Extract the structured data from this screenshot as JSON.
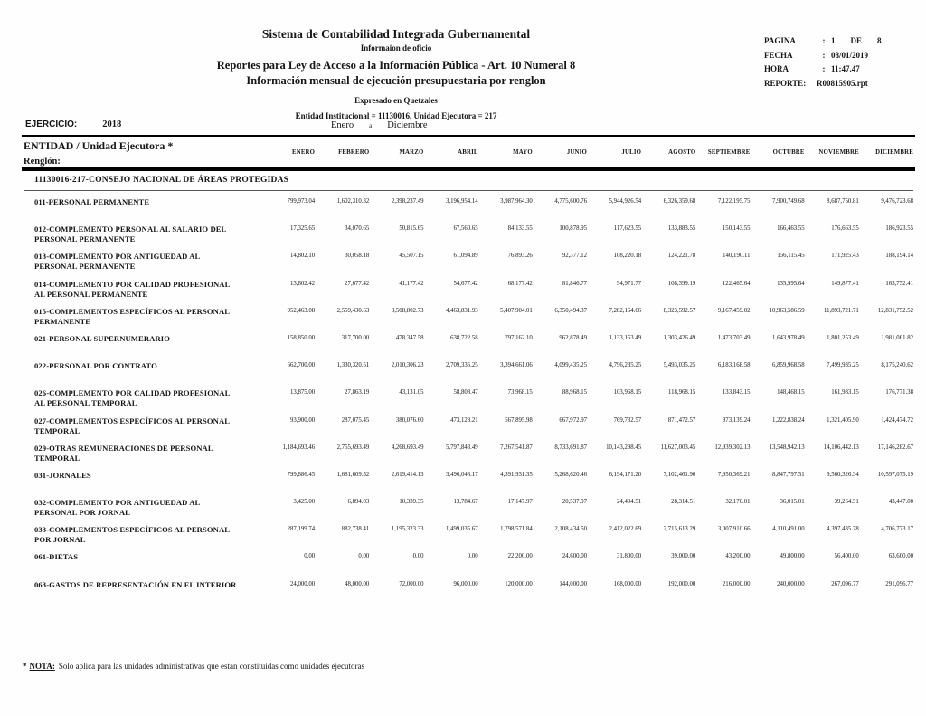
{
  "header": {
    "title1": "Sistema de Contabilidad Integrada Gubernamental",
    "title2": "Informaion de oficio",
    "title3": "Reportes para Ley de Acceso a la Información Pública - Art. 10 Numeral 8",
    "title4": "Información mensual de ejecución presupuestaria por renglon",
    "subtitle1": "Expresado en Quetzales",
    "subtitle2": "Entidad Institucional = 11130016, Unidad Ejecutora = 217"
  },
  "meta": {
    "pagina_label": "PAGINA",
    "pagina_value": "1",
    "pagina_de_label": "DE",
    "pagina_total": "8",
    "fecha_label": "FECHA",
    "fecha_value": "08/01/2019",
    "hora_label": "HORA",
    "hora_value": "11:47.47",
    "reporte_label": "REPORTE:",
    "reporte_value": "R00815905.rpt",
    "colon": ":"
  },
  "ejercicio": {
    "label": "EJERCICIO:",
    "value": "2018"
  },
  "period": {
    "from": "Enero",
    "sep": "a",
    "to": "Diciembre"
  },
  "table": {
    "entity_header": "ENTIDAD  / Unidad Ejecutora *",
    "renglon_label": "Renglón:",
    "months": [
      "ENERO",
      "FEBRERO",
      "MARZO",
      "ABRIL",
      "MAYO",
      "JUNIO",
      "JULIO",
      "AGOSTO",
      "SEPTIEMBRE",
      "OCTUBRE",
      "NOVIEMBRE",
      "DICIEMBRE"
    ],
    "group_title": "11130016-217-CONSEJO NACIONAL DE ÁREAS PROTEGIDAS",
    "rows": [
      {
        "label": "011-PERSONAL PERMANENTE",
        "values": [
          "799,973.04",
          "1,602,310.32",
          "2,398,237.49",
          "3,196,954.14",
          "3,987,964.30",
          "4,775,600.76",
          "5,944,926.54",
          "6,326,359.68",
          "7,122,195.75",
          "7,900,749.68",
          "8,687,750.81",
          "9,476,723.68"
        ]
      },
      {
        "label": "012-COMPLEMENTO PERSONAL AL SALARIO DEL PERSONAL PERMANENTE",
        "values": [
          "17,325.65",
          "34,070.65",
          "50,815.65",
          "67,560.65",
          "84,133.55",
          "100,878.95",
          "117,623.55",
          "133,883.55",
          "150,143.55",
          "166,463.55",
          "176,663.55",
          "186,923.55"
        ]
      },
      {
        "label": "013-COMPLEMENTO POR ANTIGÜEDAD AL PERSONAL PERMANENTE",
        "values": [
          "14,802.10",
          "30,058.18",
          "45,507.15",
          "61,094.89",
          "76,893.26",
          "92,377.12",
          "108,220.18",
          "124,221.78",
          "140,190.11",
          "156,115.45",
          "171,925.43",
          "188,194.14"
        ]
      },
      {
        "label": "014-COMPLEMENTO POR CALIDAD PROFESIONAL AL PERSONAL PERMANENTE",
        "values": [
          "13,802.42",
          "27,677.42",
          "41,177.42",
          "54,677.42",
          "68,177.42",
          "81,846.77",
          "94,971.77",
          "108,399.19",
          "122,465.64",
          "135,995.64",
          "149,877.41",
          "163,752.41"
        ]
      },
      {
        "label": "015-COMPLEMENTOS ESPECÍFICOS AL PERSONAL PERMANENTE",
        "values": [
          "952,463.08",
          "2,559,430.63",
          "3,508,802.73",
          "4,463,831.93",
          "5,407,904.01",
          "6,350,494.37",
          "7,282,164.66",
          "8,323,592.57",
          "9,167,459.02",
          "10,963,586.59",
          "11,893,721.71",
          "12,831,752.52"
        ]
      },
      {
        "label": "021-PERSONAL SUPERNUMERARIO",
        "values": [
          "158,850.00",
          "317,700.00",
          "478,347.58",
          "638,722.58",
          "797,162.10",
          "962,878.49",
          "1,133,153.49",
          "1,303,426.49",
          "1,473,703.49",
          "1,643,978.49",
          "1,801,253.49",
          "1,981,061.82"
        ]
      },
      {
        "label": "022-PERSONAL POR CONTRATO",
        "values": [
          "662,700.00",
          "1,330,320.51",
          "2,010,306.23",
          "2,709,335.25",
          "3,394,661.06",
          "4,099,435.25",
          "4,796,235.25",
          "5,493,035.25",
          "6,183,168.58",
          "6,859,968.58",
          "7,499,935.25",
          "8,175,240.62"
        ]
      },
      {
        "label": "026-COMPLEMENTO POR CALIDAD PROFESIONAL AL PERSONAL TEMPORAL",
        "values": [
          "13,875.00",
          "27,863.19",
          "43,131.05",
          "58,808.47",
          "73,968.15",
          "88,968.15",
          "103,968.15",
          "118,968.15",
          "133,843.15",
          "148,468.15",
          "161,983.15",
          "176,771.38"
        ]
      },
      {
        "label": "027-COMPLEMENTOS ESPECÍFICOS AL PERSONAL TEMPORAL",
        "values": [
          "93,900.00",
          "287,075.45",
          "380,076.60",
          "473,128.21",
          "567,895.98",
          "667,972.97",
          "769,732.57",
          "871,472.57",
          "973,139.24",
          "1,222,838.24",
          "1,321,405.90",
          "1,424,474.72"
        ]
      },
      {
        "label": "029-OTRAS REMUNERACIONES DE PERSONAL TEMPORAL",
        "values": [
          "1,184,693.46",
          "2,755,693.49",
          "4,268,693.49",
          "5,797,843.49",
          "7,267,541.87",
          "8,733,691.87",
          "10,143,298.45",
          "11,627,003.45",
          "12,939,302.13",
          "13,548,942.13",
          "14,106,442.13",
          "17,146,282.67"
        ]
      },
      {
        "label": "031-JORNALES",
        "values": [
          "799,886.45",
          "1,681,609.32",
          "2,619,414.13",
          "3,496,048.17",
          "4,391,931.35",
          "5,268,620.46",
          "6,194,171.20",
          "7,102,461.90",
          "7,950,369.21",
          "8,847,797.51",
          "9,560,326.34",
          "10,597,075.19"
        ]
      },
      {
        "label": "032-COMPLEMENTO POR ANTIGUEDAD AL PERSONAL POR JORNAL",
        "values": [
          "3,425.00",
          "6,894.03",
          "10,339.35",
          "13,784.67",
          "17,147.97",
          "20,537.97",
          "24,494.51",
          "28,314.51",
          "32,170.01",
          "36,015.01",
          "39,264.51",
          "43,447.00"
        ]
      },
      {
        "label": "033-COMPLEMENTOS ESPECÍFICOS AL PERSONAL POR JORNAL",
        "values": [
          "287,199.74",
          "882,738.41",
          "1,195,323.33",
          "1,499,035.67",
          "1,798,571.84",
          "2,108,434.50",
          "2,412,022.69",
          "2,715,613.29",
          "3,007,910.66",
          "4,110,491.00",
          "4,397,435.78",
          "4,706,773.17"
        ]
      },
      {
        "label": "061-DIETAS",
        "values": [
          "0.00",
          "0.00",
          "0.00",
          "0.00",
          "22,200.00",
          "24,600.00",
          "31,800.00",
          "39,000.00",
          "43,200.00",
          "49,800.00",
          "56,400.00",
          "63,600.00"
        ]
      },
      {
        "label": "063-GASTOS DE REPRESENTACIÓN EN EL INTERIOR",
        "values": [
          "24,000.00",
          "48,000.00",
          "72,000.00",
          "96,000.00",
          "120,000.00",
          "144,000.00",
          "168,000.00",
          "192,000.00",
          "216,000.00",
          "240,000.00",
          "267,096.77",
          "291,096.77"
        ]
      }
    ]
  },
  "footer": {
    "star": "*",
    "nota_label": "NOTA:",
    "note_text": "Solo aplica para las unidades administrativas que estan constituidas como unidades ejecutoras"
  }
}
